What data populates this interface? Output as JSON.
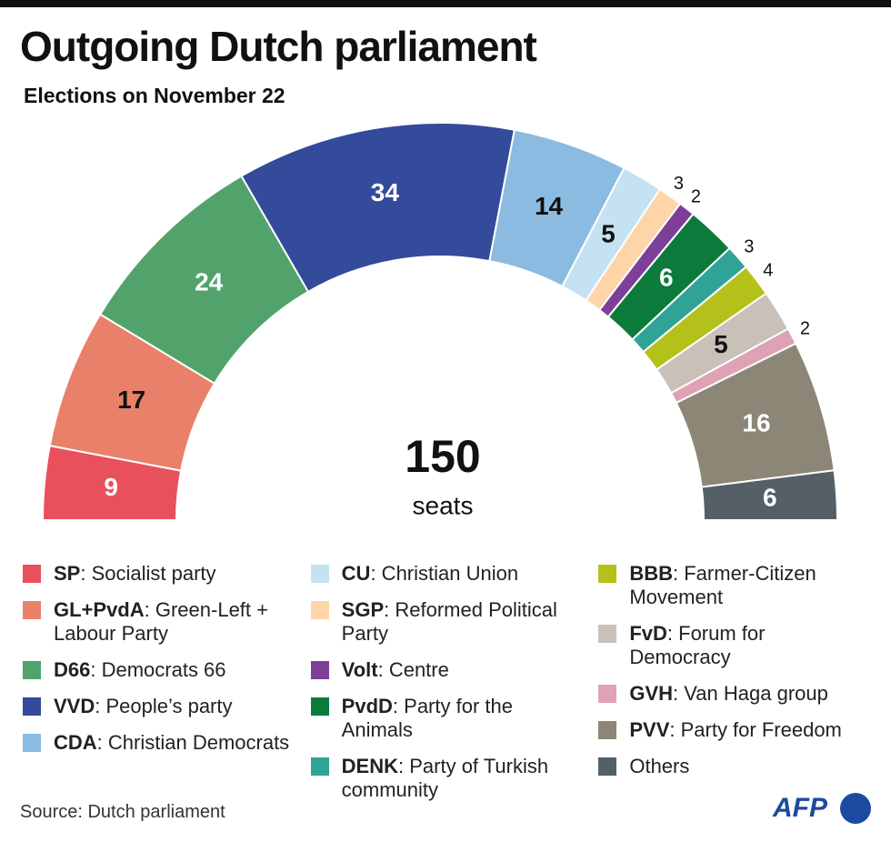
{
  "chart_data": {
    "type": "semicircle",
    "title": "Outgoing Dutch parliament",
    "subtitle": "Elections on November 22",
    "total": 150,
    "total_label": "seats",
    "source": "Source: Dutch parliament",
    "logo": "AFP",
    "series": [
      {
        "name": "SP",
        "description": ": Socialist party",
        "color": "#e8505b",
        "value": 9
      },
      {
        "name": "GL+PvdA",
        "description": ": Green-Left + Labour Party",
        "color": "#e8806a",
        "value": 17
      },
      {
        "name": "D66",
        "description": ": Democrats 66",
        "color": "#52a36b",
        "value": 24
      },
      {
        "name": "VVD",
        "description": ": People’s party",
        "color": "#344a9a",
        "value": 34
      },
      {
        "name": "CDA",
        "description": ": Christian Democrats",
        "color": "#8bbbe0",
        "value": 14
      },
      {
        "name": "CU",
        "description": ": Christian Union",
        "color": "#c5e2f3",
        "value": 5
      },
      {
        "name": "SGP",
        "description": ": Reformed Political Party",
        "color": "#fdd5a8",
        "value": 3
      },
      {
        "name": "Volt",
        "description": ": Centre",
        "color": "#7e3f98",
        "value": 2
      },
      {
        "name": "PvdD",
        "description": ": Party for the Animals",
        "color": "#0b7a3b",
        "value": 6
      },
      {
        "name": "DENK",
        "description": ": Party of Turkish community",
        "color": "#2fa396",
        "value": 3
      },
      {
        "name": "BBB",
        "description": ": Farmer-Citizen Movement",
        "color": "#b4c11b",
        "value": 4
      },
      {
        "name": "FvD",
        "description": ": Forum for Democracy",
        "color": "#c9c0b8",
        "value": 5
      },
      {
        "name": "GVH",
        "description": ": Van Haga group",
        "color": "#dea2b4",
        "value": 2
      },
      {
        "name": "PVV",
        "description": ": Party for Freedom",
        "color": "#8c8677",
        "value": 16
      },
      {
        "name": "Others",
        "color": "#555f66",
        "value": 6
      }
    ]
  }
}
